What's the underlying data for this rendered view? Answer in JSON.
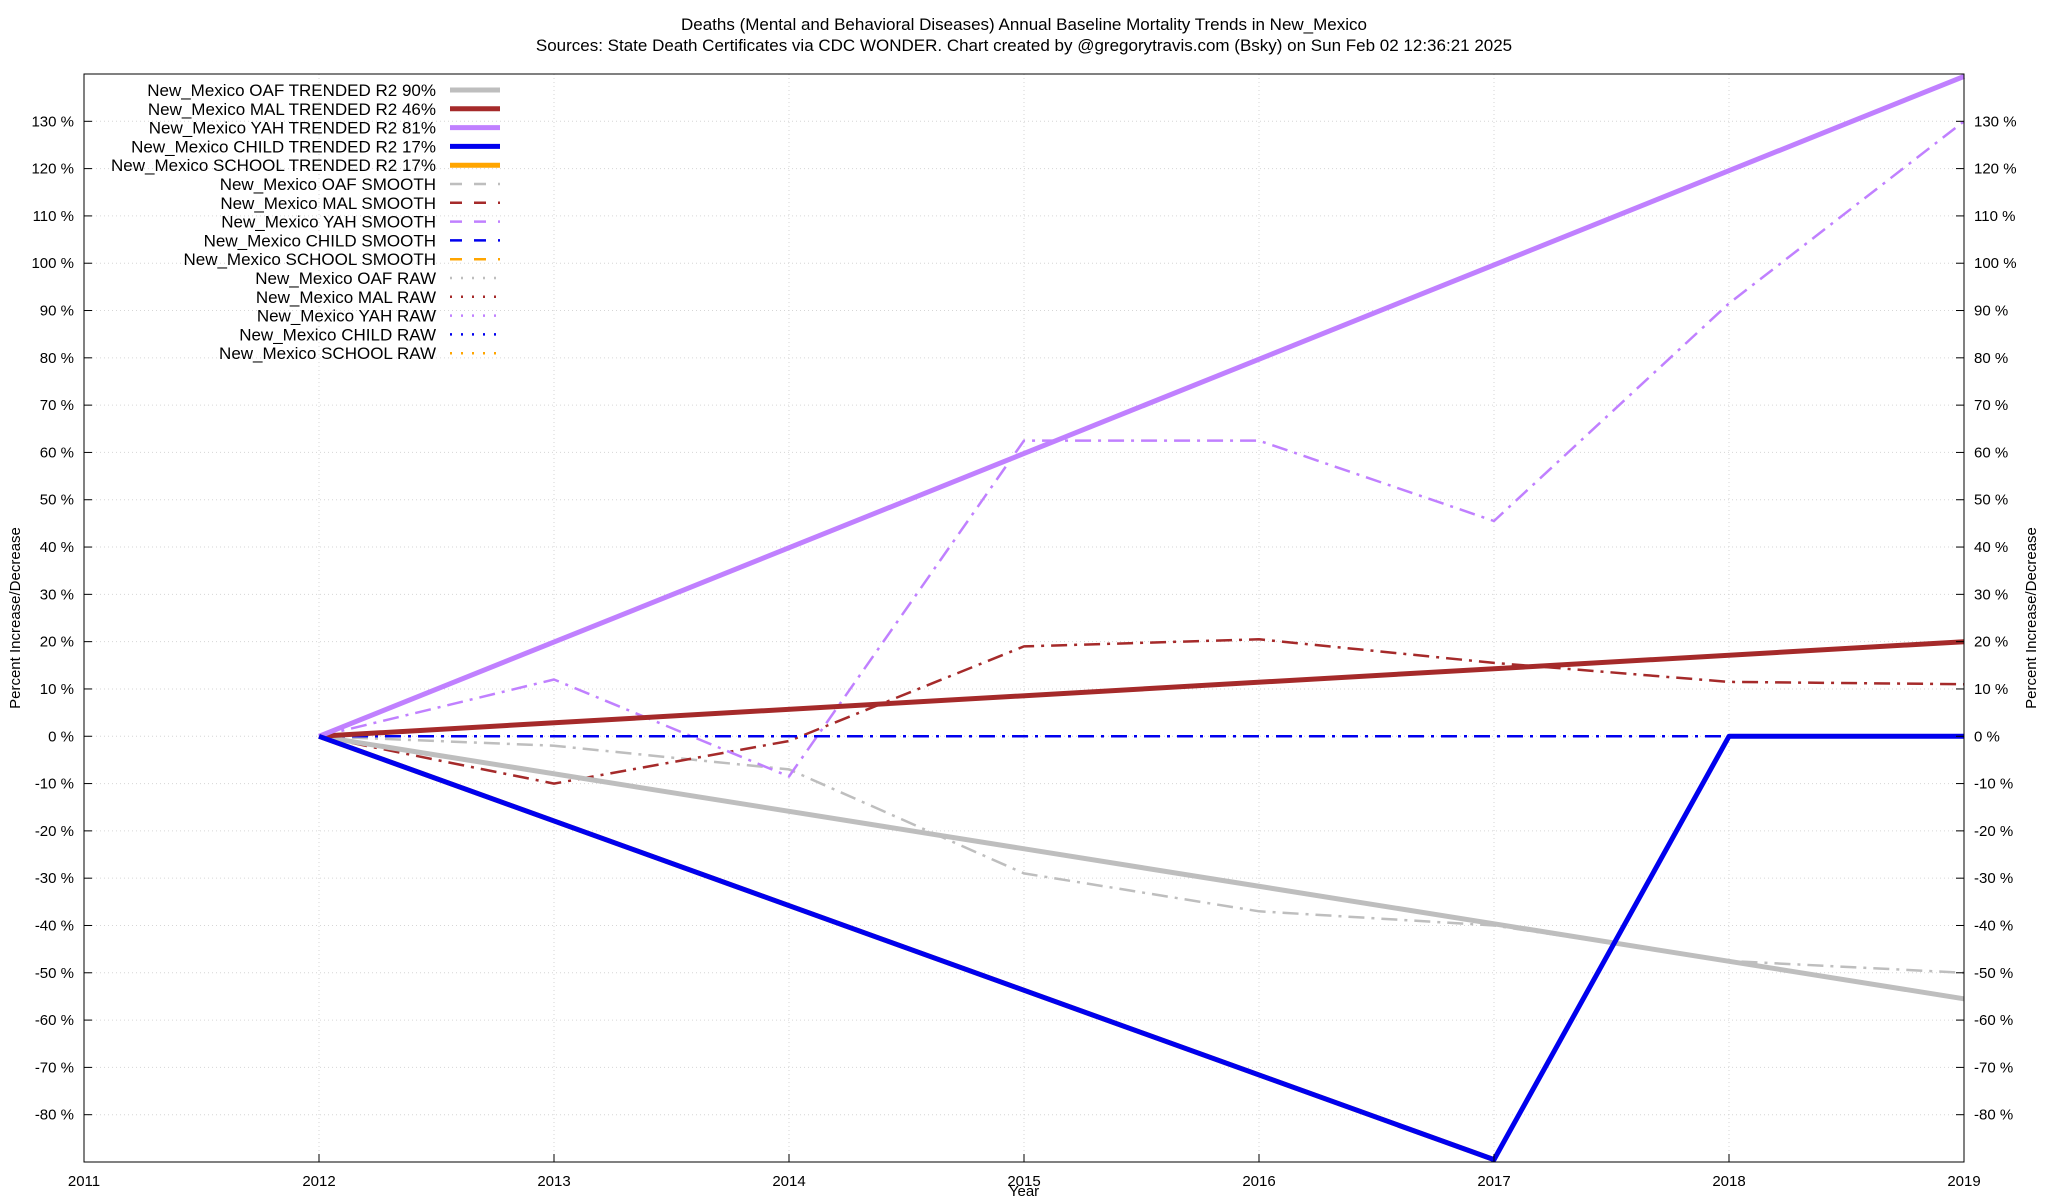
{
  "chart_data": {
    "type": "line",
    "title_line1": "Deaths (Mental and Behavioral Diseases)  Annual Baseline Mortality Trends in New_Mexico",
    "title_line2": "Sources: State Death Certificates via CDC WONDER.                Chart created by @gregorytravis.com (Bsky) on Sun Feb 02 12:36:21 2025",
    "xlabel": "Year",
    "ylabel_left": "Percent Increase/Decrease",
    "ylabel_right": "Percent Increase/Decrease",
    "xlim": [
      2011,
      2019
    ],
    "ylim": [
      -90,
      140
    ],
    "x_ticks": [
      2011,
      2012,
      2013,
      2014,
      2015,
      2016,
      2017,
      2018,
      2019
    ],
    "y_ticks": [
      -80,
      -70,
      -60,
      -50,
      -40,
      -30,
      -20,
      -10,
      0,
      10,
      20,
      30,
      40,
      50,
      60,
      70,
      80,
      90,
      100,
      110,
      120,
      130
    ],
    "y_tick_suffix": " %",
    "grid": true,
    "legend_position": "top-left",
    "series": [
      {
        "name": "New_Mexico OAF TRENDED R2  90%",
        "style": "solid",
        "width": 5,
        "color": "#bebebe",
        "x": [
          2012,
          2019
        ],
        "y": [
          0,
          -55.5
        ]
      },
      {
        "name": "New_Mexico MAL TRENDED R2  46%",
        "style": "solid",
        "width": 5,
        "color": "#a52a2a",
        "x": [
          2012,
          2019
        ],
        "y": [
          0,
          20
        ]
      },
      {
        "name": "New_Mexico YAH TRENDED R2  81%",
        "style": "solid",
        "width": 5,
        "color": "#c080ff",
        "x": [
          2012,
          2019
        ],
        "y": [
          0,
          139.5
        ]
      },
      {
        "name": "New_Mexico CHILD TRENDED R2  17%",
        "style": "solid",
        "width": 5,
        "color": "#0000ee",
        "x": [
          2012,
          2017,
          2018,
          2019
        ],
        "y": [
          0,
          -89.5,
          0,
          0
        ]
      },
      {
        "name": "New_Mexico SCHOOL TRENDED R2  17%",
        "style": "solid",
        "width": 5,
        "color": "#ffa500",
        "x": [
          2012,
          2017
        ],
        "y": [
          0,
          -89.5
        ]
      },
      {
        "name": "New_Mexico OAF SMOOTH",
        "style": "dashdot",
        "width": 2.5,
        "color": "#bebebe",
        "x": [
          2012,
          2013,
          2014,
          2015,
          2016,
          2017,
          2018,
          2019
        ],
        "y": [
          0,
          -2,
          -7,
          -29,
          -37,
          -40,
          -47.5,
          -50
        ]
      },
      {
        "name": "New_Mexico MAL SMOOTH",
        "style": "dashdot",
        "width": 2.5,
        "color": "#a52a2a",
        "x": [
          2012,
          2013,
          2014,
          2015,
          2016,
          2017,
          2018,
          2019
        ],
        "y": [
          0,
          -10,
          -1,
          19,
          20.5,
          15.5,
          11.5,
          11
        ]
      },
      {
        "name": "New_Mexico YAH SMOOTH",
        "style": "dashdot",
        "width": 2.5,
        "color": "#c080ff",
        "x": [
          2012,
          2013,
          2014,
          2015,
          2016,
          2017,
          2018,
          2019
        ],
        "y": [
          0,
          12,
          -8.5,
          62.5,
          62.5,
          45.5,
          91.5,
          130
        ]
      },
      {
        "name": "New_Mexico CHILD SMOOTH",
        "style": "dashdot",
        "width": 2.5,
        "color": "#0000ee",
        "x": [
          2012,
          2019
        ],
        "y": [
          0,
          0
        ]
      },
      {
        "name": "New_Mexico SCHOOL SMOOTH",
        "style": "dashdot",
        "width": 2.5,
        "color": "#ffa500",
        "x": [],
        "y": []
      },
      {
        "name": "New_Mexico OAF RAW",
        "style": "dotted",
        "width": 2.5,
        "color": "#bebebe",
        "x": [],
        "y": []
      },
      {
        "name": "New_Mexico MAL RAW",
        "style": "dotted",
        "width": 2.5,
        "color": "#a52a2a",
        "x": [],
        "y": []
      },
      {
        "name": "New_Mexico YAH RAW",
        "style": "dotted",
        "width": 2.5,
        "color": "#c080ff",
        "x": [],
        "y": []
      },
      {
        "name": "New_Mexico CHILD RAW",
        "style": "dotted",
        "width": 2.5,
        "color": "#0000ee",
        "x": [],
        "y": []
      },
      {
        "name": "New_Mexico SCHOOL RAW",
        "style": "dotted",
        "width": 2.5,
        "color": "#ffa500",
        "x": [],
        "y": []
      }
    ]
  }
}
